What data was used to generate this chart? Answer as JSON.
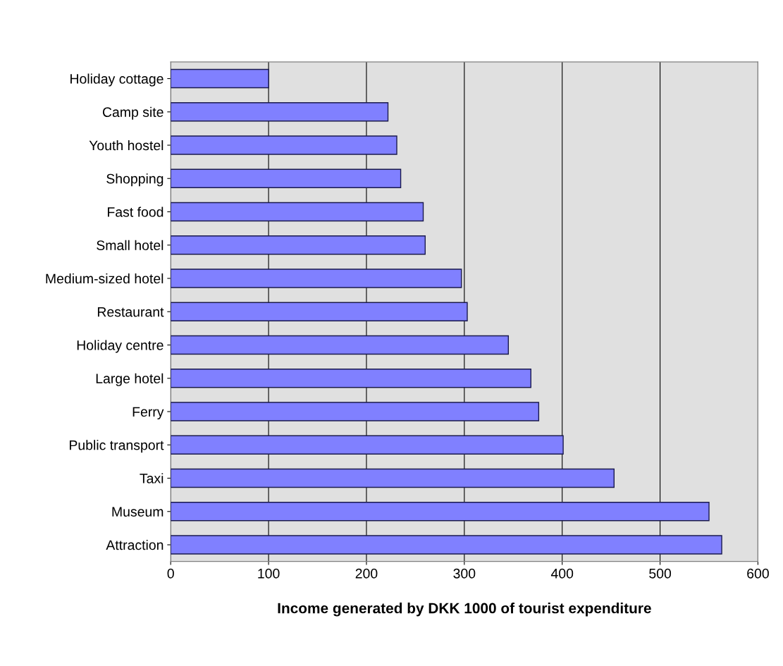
{
  "chart_data": {
    "type": "bar",
    "orientation": "horizontal",
    "xlabel": "Income generated by DKK 1000 of tourist expenditure",
    "categories": [
      "Holiday cottage",
      "Camp site",
      "Youth hostel",
      "Shopping",
      "Fast food",
      "Small hotel",
      "Medium-sized hotel",
      "Restaurant",
      "Holiday centre",
      "Large hotel",
      "Ferry",
      "Public transport",
      "Taxi",
      "Museum",
      "Attraction"
    ],
    "values": [
      100,
      222,
      231,
      235,
      258,
      260,
      297,
      303,
      345,
      368,
      376,
      401,
      453,
      550,
      563
    ],
    "color": "#8080ff",
    "xlim": [
      0,
      600
    ],
    "xticks": [
      0,
      100,
      200,
      300,
      400,
      500,
      600
    ],
    "grid": "x"
  }
}
